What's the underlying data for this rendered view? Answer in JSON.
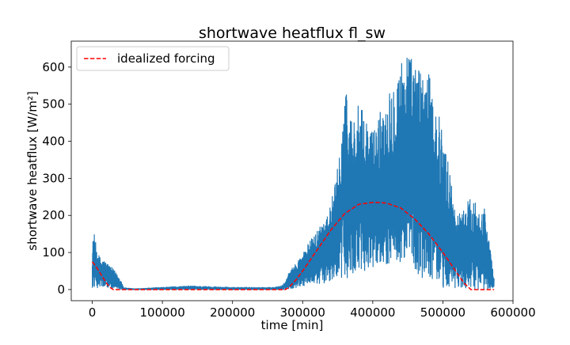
{
  "chart_data": {
    "type": "line",
    "title": "shortwave heatflux fl_sw",
    "xlabel": "time [min]",
    "ylabel": "shortwave heatflux [W/m²]",
    "xlim": [
      -30000,
      600000
    ],
    "ylim": [
      -30,
      670
    ],
    "xticks": [
      0,
      100000,
      200000,
      300000,
      400000,
      500000,
      600000
    ],
    "xtick_labels": [
      "0",
      "100000",
      "200000",
      "300000",
      "400000",
      "500000",
      "600000"
    ],
    "yticks": [
      0,
      100,
      200,
      300,
      400,
      500,
      600
    ],
    "ytick_labels": [
      "0",
      "100",
      "200",
      "300",
      "400",
      "500",
      "600"
    ],
    "grid": false,
    "legend_position": "upper-left",
    "series": [
      {
        "name": "",
        "style": "solid",
        "color": "#1f77b4",
        "x_range": [
          0,
          573000
        ],
        "envelope": {
          "x": [
            0,
            2000,
            5000,
            10000,
            20000,
            30000,
            40000,
            45000,
            60000,
            100000,
            140000,
            200000,
            260000,
            270000,
            275000,
            280000,
            290000,
            300000,
            320000,
            340000,
            350000,
            360000,
            370000,
            380000,
            400000,
            420000,
            440000,
            450000,
            460000,
            470000,
            480000,
            500000,
            520000,
            540000,
            560000,
            573000
          ],
          "upper": [
            110,
            160,
            125,
            90,
            75,
            55,
            30,
            5,
            2,
            6,
            10,
            6,
            6,
            10,
            20,
            45,
            70,
            100,
            160,
            230,
            330,
            550,
            470,
            500,
            430,
            530,
            620,
            660,
            600,
            610,
            580,
            430,
            200,
            250,
            220,
            30
          ],
          "lower": [
            5,
            5,
            5,
            5,
            5,
            3,
            1,
            0,
            0,
            0,
            0,
            0,
            0,
            0,
            0,
            2,
            5,
            10,
            15,
            20,
            30,
            30,
            35,
            40,
            60,
            70,
            60,
            50,
            40,
            30,
            20,
            5,
            2,
            0,
            0,
            0
          ]
        }
      },
      {
        "name": "idealized forcing",
        "style": "dashed",
        "color": "#ff0000",
        "x": [
          0,
          5000,
          10000,
          15000,
          20000,
          25000,
          30000,
          275000,
          280000,
          290000,
          300000,
          320000,
          340000,
          360000,
          380000,
          400000,
          410000,
          420000,
          440000,
          460000,
          480000,
          500000,
          520000,
          530000,
          540000,
          573000
        ],
        "y": [
          75,
          63,
          48,
          33,
          18,
          6,
          0,
          0,
          5,
          25,
          50,
          105,
          160,
          205,
          230,
          235,
          235,
          233,
          220,
          190,
          150,
          100,
          45,
          18,
          0,
          0
        ]
      }
    ]
  }
}
